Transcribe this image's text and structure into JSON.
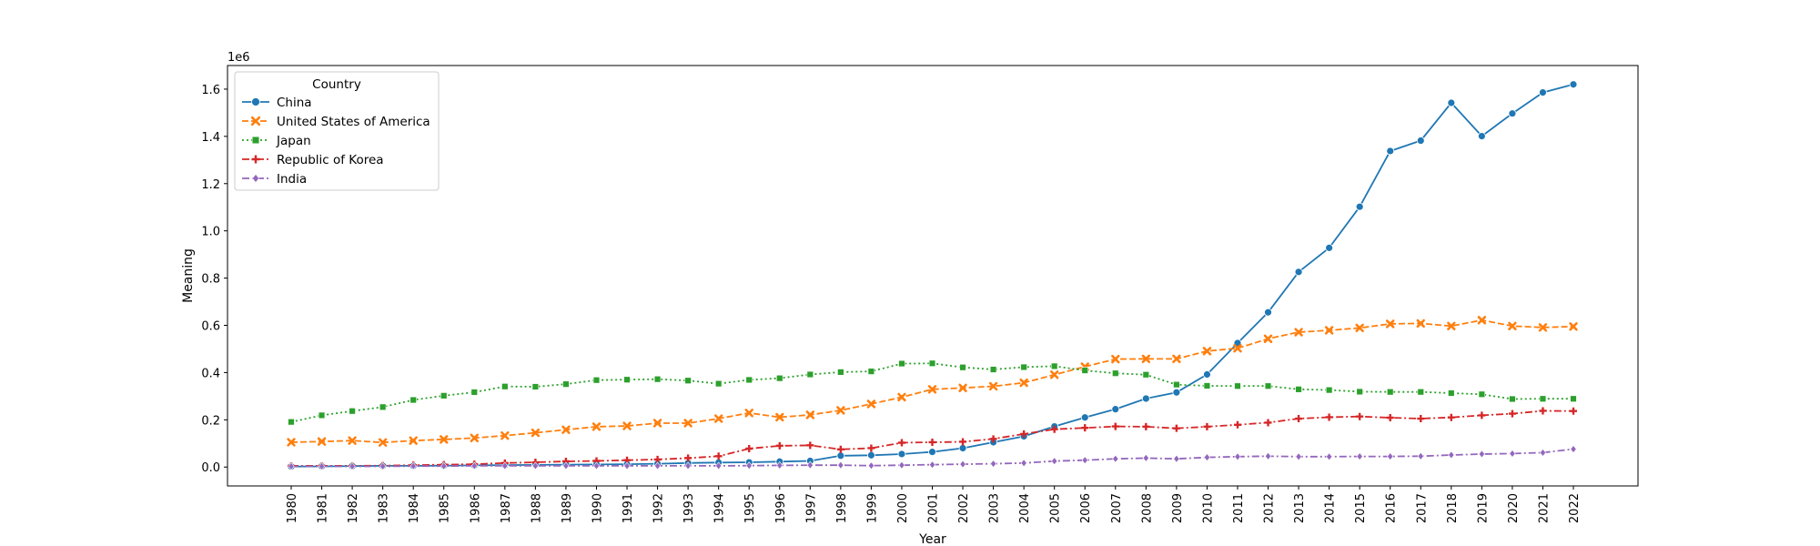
{
  "chart_data": {
    "type": "line",
    "title": "",
    "xlabel": "Year",
    "ylabel": "Meaning",
    "y_offset_label": "1e6",
    "ylim": [
      -80000,
      1700000
    ],
    "yticks": [
      0,
      200000,
      400000,
      600000,
      800000,
      1000000,
      1200000,
      1400000,
      1600000
    ],
    "ytick_labels": [
      "0.0",
      "0.2",
      "0.4",
      "0.6",
      "0.8",
      "1.0",
      "1.2",
      "1.4",
      "1.6"
    ],
    "grid": false,
    "legend": {
      "title": "Country",
      "placement": "upper-left"
    },
    "x": [
      1980,
      1981,
      1982,
      1983,
      1984,
      1985,
      1986,
      1987,
      1988,
      1989,
      1990,
      1991,
      1992,
      1993,
      1994,
      1995,
      1996,
      1997,
      1998,
      1999,
      2000,
      2001,
      2002,
      2003,
      2004,
      2005,
      2006,
      2007,
      2008,
      2009,
      2010,
      2011,
      2012,
      2013,
      2014,
      2015,
      2016,
      2017,
      2018,
      2019,
      2020,
      2021,
      2022
    ],
    "series": [
      {
        "name": "China",
        "color": "#1f77b4",
        "linestyle": "solid",
        "marker": "circle",
        "values": [
          2000,
          3000,
          4000,
          5000,
          5000,
          6000,
          7000,
          8000,
          9000,
          10000,
          11000,
          12000,
          14000,
          17000,
          19000,
          20000,
          23000,
          26000,
          48000,
          50000,
          55000,
          64000,
          80000,
          105000,
          130000,
          172000,
          210000,
          245000,
          290000,
          316000,
          392000,
          525000,
          655000,
          826000,
          928000,
          1102000,
          1338000,
          1382000,
          1542000,
          1401000,
          1497000,
          1586000,
          1620000
        ]
      },
      {
        "name": "United States of America",
        "color": "#ff7f0e",
        "linestyle": "dashed",
        "marker": "x",
        "values": [
          105000,
          108000,
          112000,
          104000,
          112000,
          117000,
          123000,
          133000,
          145000,
          158000,
          171000,
          174000,
          186000,
          186000,
          205000,
          229000,
          211000,
          221000,
          240000,
          267000,
          296000,
          329000,
          335000,
          342000,
          357000,
          391000,
          425000,
          457000,
          458000,
          458000,
          491000,
          503000,
          543000,
          571000,
          579000,
          589000,
          606000,
          608000,
          597000,
          622000,
          597000,
          591000,
          595000
        ]
      },
      {
        "name": "Japan",
        "color": "#2ca02c",
        "linestyle": "dotted",
        "marker": "square",
        "values": [
          191000,
          219000,
          237000,
          254000,
          284000,
          302000,
          317000,
          341000,
          340000,
          351000,
          368000,
          370000,
          372000,
          366000,
          353000,
          369000,
          376000,
          392000,
          402000,
          405000,
          438000,
          439000,
          422000,
          413000,
          423000,
          427000,
          409000,
          397000,
          391000,
          349000,
          344000,
          343000,
          343000,
          329000,
          326000,
          319000,
          318000,
          318000,
          313000,
          308000,
          288000,
          289000,
          289000
        ]
      },
      {
        "name": "Republic of Korea",
        "color": "#d62728",
        "linestyle": "dashdot",
        "marker": "plus",
        "values": [
          5000,
          5000,
          5000,
          6000,
          8000,
          10000,
          12000,
          17000,
          20000,
          24000,
          26000,
          29000,
          32000,
          38000,
          46000,
          78000,
          90000,
          92000,
          75000,
          80000,
          103000,
          105000,
          107000,
          119000,
          140000,
          160000,
          166000,
          172000,
          171000,
          164000,
          171000,
          179000,
          188000,
          205000,
          211000,
          214000,
          209000,
          205000,
          210000,
          219000,
          226000,
          238000,
          237000
        ]
      },
      {
        "name": "India",
        "color": "#9467bd",
        "linestyle": "dashdot",
        "marker": "diamond",
        "values": [
          3000,
          3000,
          3000,
          3000,
          4000,
          4000,
          5000,
          5000,
          5000,
          5000,
          5000,
          5000,
          5000,
          5000,
          5000,
          6000,
          7000,
          8000,
          8000,
          6000,
          8000,
          10000,
          12000,
          14000,
          17000,
          25000,
          29000,
          35000,
          38000,
          35000,
          41000,
          44000,
          46000,
          44000,
          44000,
          45000,
          45000,
          46000,
          51000,
          55000,
          57000,
          61000,
          76000
        ]
      }
    ]
  }
}
